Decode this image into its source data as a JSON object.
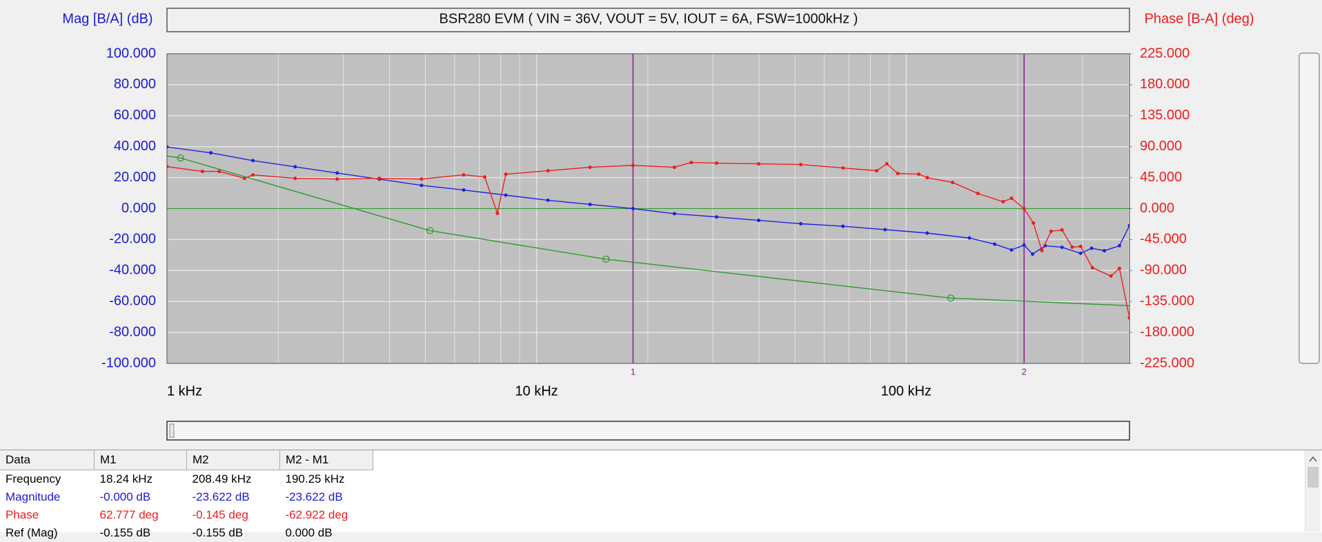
{
  "chart_data": {
    "type": "line",
    "title": "BSR280 EVM ( VIN = 36V, VOUT = 5V, IOUT = 6A, FSW=1000kHz )",
    "y_label": "Mag [B/A] (dB)",
    "y2_label": "Phase [B-A] (deg)",
    "x_log": true,
    "grid": true,
    "xlim": [
      1000,
      402000
    ],
    "xticks": [
      {
        "value": 1000,
        "label": "1 kHz"
      },
      {
        "value": 10000,
        "label": "10 kHz"
      },
      {
        "value": 100000,
        "label": "100 kHz"
      }
    ],
    "ylim": [
      -100,
      100
    ],
    "yticks": [
      {
        "value": -100,
        "label": "-100.000"
      },
      {
        "value": -80,
        "label": "-80.000"
      },
      {
        "value": -60,
        "label": "-60.000"
      },
      {
        "value": -40,
        "label": "-40.000"
      },
      {
        "value": -20,
        "label": "-20.000"
      },
      {
        "value": 0,
        "label": "0.000"
      },
      {
        "value": 20,
        "label": "20.000"
      },
      {
        "value": 40,
        "label": "40.000"
      },
      {
        "value": 60,
        "label": "60.000"
      },
      {
        "value": 80,
        "label": "80.000"
      },
      {
        "value": 100,
        "label": "100.000"
      }
    ],
    "y2lim": [
      -225,
      225
    ],
    "y2ticks": [
      {
        "value": -225,
        "label": "-225.000"
      },
      {
        "value": -180,
        "label": "-180.000"
      },
      {
        "value": -135,
        "label": "-135.000"
      },
      {
        "value": -90,
        "label": "-90.000"
      },
      {
        "value": -45,
        "label": "-45.000"
      },
      {
        "value": 0,
        "label": "0.000"
      },
      {
        "value": 45,
        "label": "45.000"
      },
      {
        "value": 90,
        "label": "90.000"
      },
      {
        "value": 135,
        "label": "135.000"
      },
      {
        "value": 180,
        "label": "180.000"
      },
      {
        "value": 225,
        "label": "225.000"
      }
    ],
    "hline": {
      "value": 0,
      "color": "#2e9a2e"
    },
    "markers": [
      {
        "label": "1",
        "x": 18240,
        "color": "#8a1a8a"
      },
      {
        "label": "2",
        "x": 208490,
        "color": "#8a1a8a"
      }
    ],
    "series": [
      {
        "color": "#2020e0",
        "dots": "small",
        "x": [
          1000,
          1314,
          1708,
          2222,
          2888,
          3756,
          4883,
          6349,
          8256,
          10735,
          13956,
          18240,
          23600,
          30690,
          39900,
          51880,
          67450,
          87700,
          114000,
          148300,
          173600,
          192800,
          208490,
          219800,
          237700,
          264000,
          296500,
          317500,
          343700,
          377600,
          402000
        ],
        "values": [
          39.8,
          36,
          31,
          27,
          23,
          19,
          15,
          12,
          8.7,
          5.4,
          2.7,
          0,
          -3.3,
          -5.4,
          -7.6,
          -9.8,
          -11.4,
          -13.6,
          -15.8,
          -19,
          -23,
          -26.7,
          -23.6,
          -29.4,
          -24,
          -25,
          -28.9,
          -25.6,
          -27.2,
          -24,
          -10.9
        ]
      },
      {
        "color": "#ee1c1c",
        "dots": "small",
        "axis": "y2",
        "x": [
          1000,
          1247,
          1385,
          1621,
          1708,
          2222,
          2888,
          3756,
          4883,
          6349,
          7238,
          7834,
          8256,
          10735,
          13956,
          18240,
          23600,
          26210,
          30690,
          39900,
          51880,
          67450,
          83200,
          88640,
          94900,
          108200,
          114000,
          133500,
          156300,
          182900,
          192800,
          208490,
          220900,
          232900,
          246700,
          264000,
          281300,
          296500,
          319100,
          358200,
          377600,
          402000
        ],
        "values": [
          61,
          54,
          54,
          44,
          49,
          44,
          43,
          44,
          43,
          49,
          46,
          -7,
          50,
          55,
          60,
          62.8,
          60,
          67,
          66,
          65,
          64,
          59,
          55,
          65,
          51,
          50,
          45,
          38,
          22,
          10,
          15,
          -0.145,
          -21,
          -61,
          -33,
          -31,
          -56,
          -55,
          -86,
          -98,
          -87,
          -159
        ]
      },
      {
        "color": "#2e9a2e",
        "dots": "open",
        "x": [
          1000,
          1088,
          5147,
          15420,
          132100,
          402000
        ],
        "values": [
          34,
          32.7,
          -14.2,
          -32.7,
          -57.8,
          -62.7
        ]
      }
    ]
  },
  "table": {
    "header": [
      "Data",
      "M1",
      "M2",
      "M2 - M1"
    ],
    "rows": [
      [
        "Frequency",
        "18.24 kHz",
        "208.49 kHz",
        "190.25 kHz"
      ],
      [
        "Magnitude",
        "-0.000 dB",
        "-23.622 dB",
        "-23.622 dB"
      ],
      [
        "Phase",
        "62.777 deg",
        "-0.145 deg",
        "-62.922 deg"
      ],
      [
        "Ref (Mag)",
        "-0.155 dB",
        "-0.155 dB",
        "0.000 dB"
      ]
    ],
    "row_colors": [
      "#000000",
      "#1a1ad0",
      "#ee1c1c",
      "#000000"
    ]
  }
}
